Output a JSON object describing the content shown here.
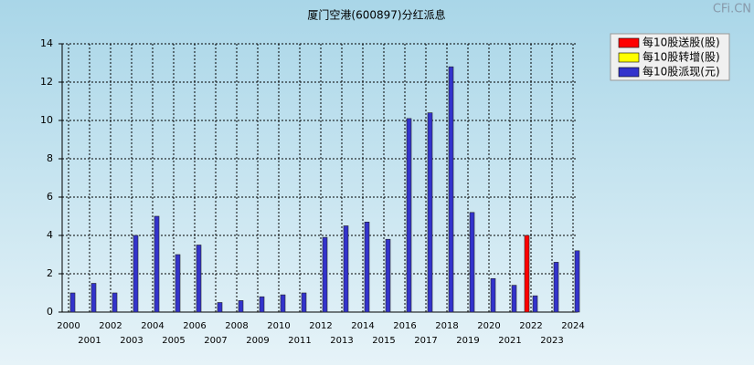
{
  "watermark": "CFi.CN",
  "chart_data": {
    "type": "bar",
    "title": "厦门空港(600897)分红派息",
    "categories": [
      "2000",
      "2001",
      "2002",
      "2003",
      "2004",
      "2005",
      "2006",
      "2007",
      "2008",
      "2009",
      "2010",
      "2011",
      "2012",
      "2013",
      "2014",
      "2015",
      "2016",
      "2017",
      "2018",
      "2019",
      "2020",
      "2021",
      "2022",
      "2023",
      "2024"
    ],
    "series": [
      {
        "name": "每10股送股(股)",
        "color": "#ff0000",
        "values": [
          null,
          null,
          null,
          null,
          null,
          null,
          null,
          null,
          null,
          null,
          null,
          null,
          null,
          null,
          null,
          null,
          null,
          null,
          null,
          null,
          null,
          null,
          4,
          null,
          null
        ]
      },
      {
        "name": "每10股转增(股)",
        "color": "#ffff00",
        "values": [
          null,
          null,
          null,
          null,
          null,
          null,
          null,
          null,
          null,
          null,
          null,
          null,
          null,
          null,
          null,
          null,
          null,
          null,
          null,
          null,
          null,
          null,
          null,
          null,
          null
        ]
      },
      {
        "name": "每10股派现(元)",
        "color": "#3333cc",
        "values": [
          1.0,
          1.5,
          1.0,
          4.0,
          5.0,
          3.0,
          3.5,
          0.5,
          0.6,
          0.8,
          0.9,
          1.0,
          3.9,
          4.5,
          4.7,
          3.8,
          10.1,
          10.4,
          12.8,
          5.2,
          1.75,
          1.4,
          0.85,
          2.6,
          3.2
        ]
      }
    ],
    "ylim": [
      0,
      14
    ],
    "yticks": [
      0,
      2,
      4,
      6,
      8,
      10,
      12,
      14
    ],
    "grid": true
  }
}
